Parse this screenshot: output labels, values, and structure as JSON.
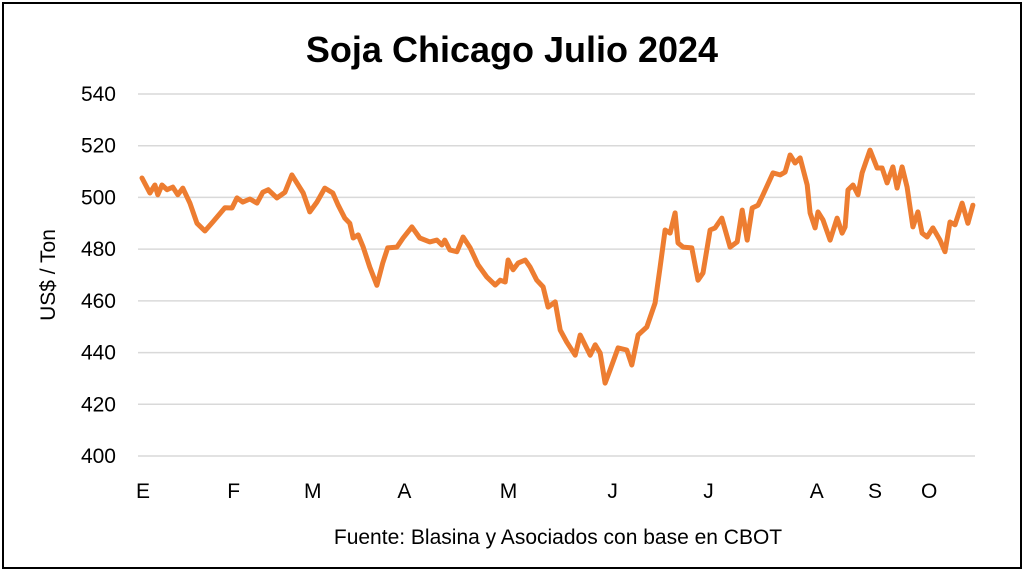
{
  "chart_data": {
    "type": "line",
    "title": "Soja Chicago Julio 2024",
    "xlabel": "",
    "ylabel": "US$ / Ton",
    "source": "Fuente: Blasina y Asociados con base en CBOT",
    "ylim": [
      400,
      540
    ],
    "yticks": [
      400,
      420,
      440,
      460,
      480,
      500,
      520,
      540
    ],
    "xlim": [
      0,
      200
    ],
    "grid": true,
    "line_color": "#ED7D31",
    "xtick_labels": [
      {
        "label": "E",
        "x": 0
      },
      {
        "label": "F",
        "x": 22
      },
      {
        "label": "M",
        "x": 41
      },
      {
        "label": "A",
        "x": 63
      },
      {
        "label": "M",
        "x": 88
      },
      {
        "label": "J",
        "x": 113
      },
      {
        "label": "J",
        "x": 136
      },
      {
        "label": "A",
        "x": 162
      },
      {
        "label": "S",
        "x": 176
      },
      {
        "label": "O",
        "x": 189
      }
    ],
    "series": [
      {
        "name": "Soja Chicago Julio 2024",
        "x": [
          0,
          1.9,
          3.1,
          3.8,
          4.8,
          6,
          7.4,
          8.6,
          9.8,
          11.5,
          13.2,
          15.1,
          17,
          19.9,
          21.6,
          22.8,
          24.2,
          25.9,
          27.6,
          29,
          30.3,
          32.4,
          34.3,
          36,
          37.2,
          38.7,
          40.3,
          42,
          43.9,
          45.8,
          47.1,
          48.7,
          49.9,
          50.7,
          51.9,
          53.1,
          54.7,
          56.4,
          57.8,
          59,
          61.2,
          62.7,
          64.8,
          66.7,
          69.1,
          70.8,
          72,
          72.7,
          73.9,
          75.6,
          77.1,
          78.8,
          80.7,
          82.8,
          84.8,
          86,
          87.2,
          87.9,
          89.1,
          90.3,
          92,
          93.2,
          94.8,
          96.3,
          97.5,
          99.2,
          100.4,
          102,
          104,
          105.2,
          107.6,
          108.8,
          110,
          111.2,
          112.4,
          114.3,
          116.4,
          117.6,
          119.1,
          121.2,
          123.2,
          124.4,
          125.6,
          126.8,
          128,
          128.7,
          129.9,
          132,
          133.5,
          134.7,
          136.4,
          137.6,
          139.2,
          141.2,
          142.9,
          144.1,
          145.3,
          146.5,
          147.9,
          149.1,
          151.5,
          153.2,
          154.4,
          155.6,
          156.8,
          158,
          159.7,
          160.4,
          161.6,
          162.3,
          163.5,
          165.2,
          166.9,
          168.1,
          168.8,
          169.5,
          170.7,
          171.9,
          172.9,
          174.8,
          176.5,
          177.7,
          178.9,
          180.3,
          181.3,
          182.5,
          183.7,
          185.1,
          186.3,
          187.3,
          188.5,
          189.9,
          191.6,
          192.8,
          194,
          195.2,
          196.9,
          198.3,
          199.5
        ],
        "values": [
          507.5,
          501.7,
          504.8,
          501,
          504.8,
          503,
          504,
          501,
          503.6,
          497.8,
          490,
          487,
          490.5,
          496,
          495.9,
          499.8,
          498.2,
          499.4,
          497.8,
          502,
          503,
          499.8,
          502,
          508.7,
          505.6,
          501.7,
          494.4,
          498.2,
          503.6,
          501.7,
          497,
          492,
          490,
          484.3,
          485.5,
          480.8,
          473,
          466,
          474.6,
          480.5,
          480.8,
          484.3,
          488.6,
          484.3,
          482.8,
          483.5,
          481.6,
          483.5,
          479.7,
          479,
          484.7,
          480.5,
          473.9,
          469.2,
          466.1,
          468,
          467.3,
          475.8,
          472,
          474.6,
          475.8,
          473,
          468,
          465.4,
          457.6,
          459.6,
          448.7,
          444,
          439,
          446.8,
          439,
          443,
          439.8,
          428.2,
          433.3,
          441.8,
          441,
          435.2,
          446.8,
          449.9,
          459.2,
          473,
          487.4,
          486.2,
          494,
          482.4,
          480.8,
          480.5,
          468,
          470.8,
          487.4,
          488.2,
          492,
          480.8,
          482.8,
          495.1,
          483.5,
          495.9,
          497,
          501,
          509.5,
          508.7,
          509.8,
          516.4,
          513.3,
          515.3,
          504.8,
          494,
          488.2,
          494.4,
          491.3,
          483.5,
          492,
          486.2,
          488.6,
          502.9,
          504.8,
          501,
          509.5,
          518.3,
          511.4,
          511.4,
          505.6,
          511.8,
          503.6,
          511.8,
          504,
          488.6,
          494.4,
          486.2,
          484.7,
          488.2,
          483.5,
          479,
          490.5,
          489.4,
          497.8,
          490,
          497
        ]
      }
    ]
  }
}
